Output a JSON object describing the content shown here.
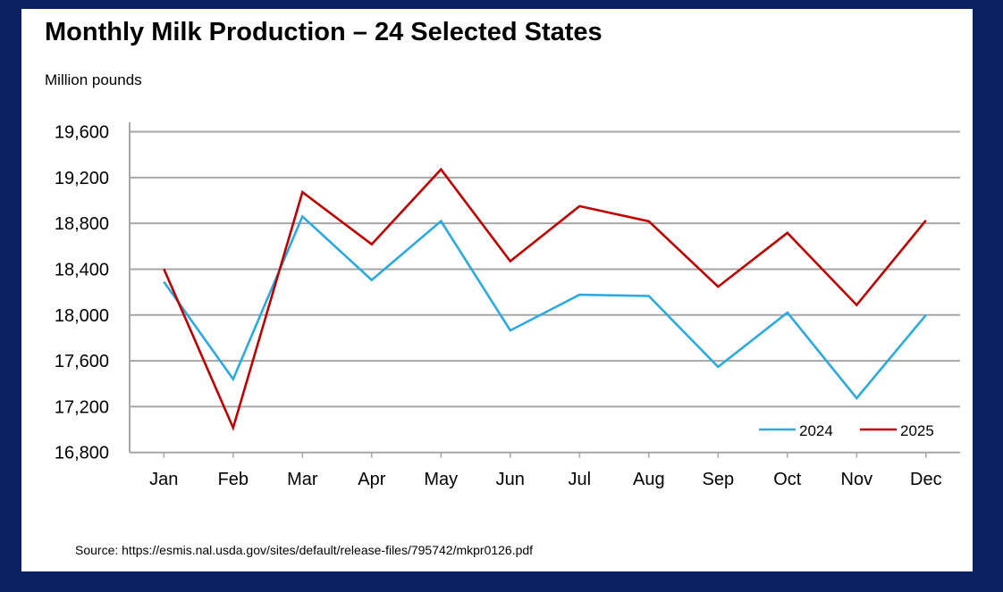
{
  "chart_data": {
    "type": "line",
    "title": "Monthly Milk Production – 24 Selected States",
    "ylabel": "Million pounds",
    "xlabel": "",
    "categories": [
      "Jan",
      "Feb",
      "Mar",
      "Apr",
      "May",
      "Jun",
      "Jul",
      "Aug",
      "Sep",
      "Oct",
      "Nov",
      "Dec"
    ],
    "ylim": [
      16800,
      19600
    ],
    "yticks": [
      16800,
      17200,
      17600,
      18000,
      18400,
      18800,
      19200,
      19600
    ],
    "ytick_labels": [
      "16,800",
      "17,200",
      "17,600",
      "18,000",
      "18,400",
      "18,800",
      "19,200",
      "19,600"
    ],
    "grid": "horizontal",
    "legend_placement": "bottom-right",
    "series": [
      {
        "name": "2024",
        "color": "#29abe2",
        "values": [
          18290,
          17440,
          18860,
          18305,
          18820,
          17865,
          18177,
          18166,
          17547,
          18021,
          17274,
          18000
        ]
      },
      {
        "name": "2025",
        "color": "#c00000",
        "values": [
          18402,
          17015,
          19072,
          18617,
          19271,
          18470,
          18950,
          18818,
          18247,
          18717,
          18087,
          18826
        ]
      }
    ]
  },
  "source": "Source:  https://esmis.nal.usda.gov/sites/default/release-files/795742/mkpr0126.pdf",
  "colors": {
    "background": "#0b2161",
    "panel": "#ffffff",
    "grid": "#a6a6a6"
  }
}
